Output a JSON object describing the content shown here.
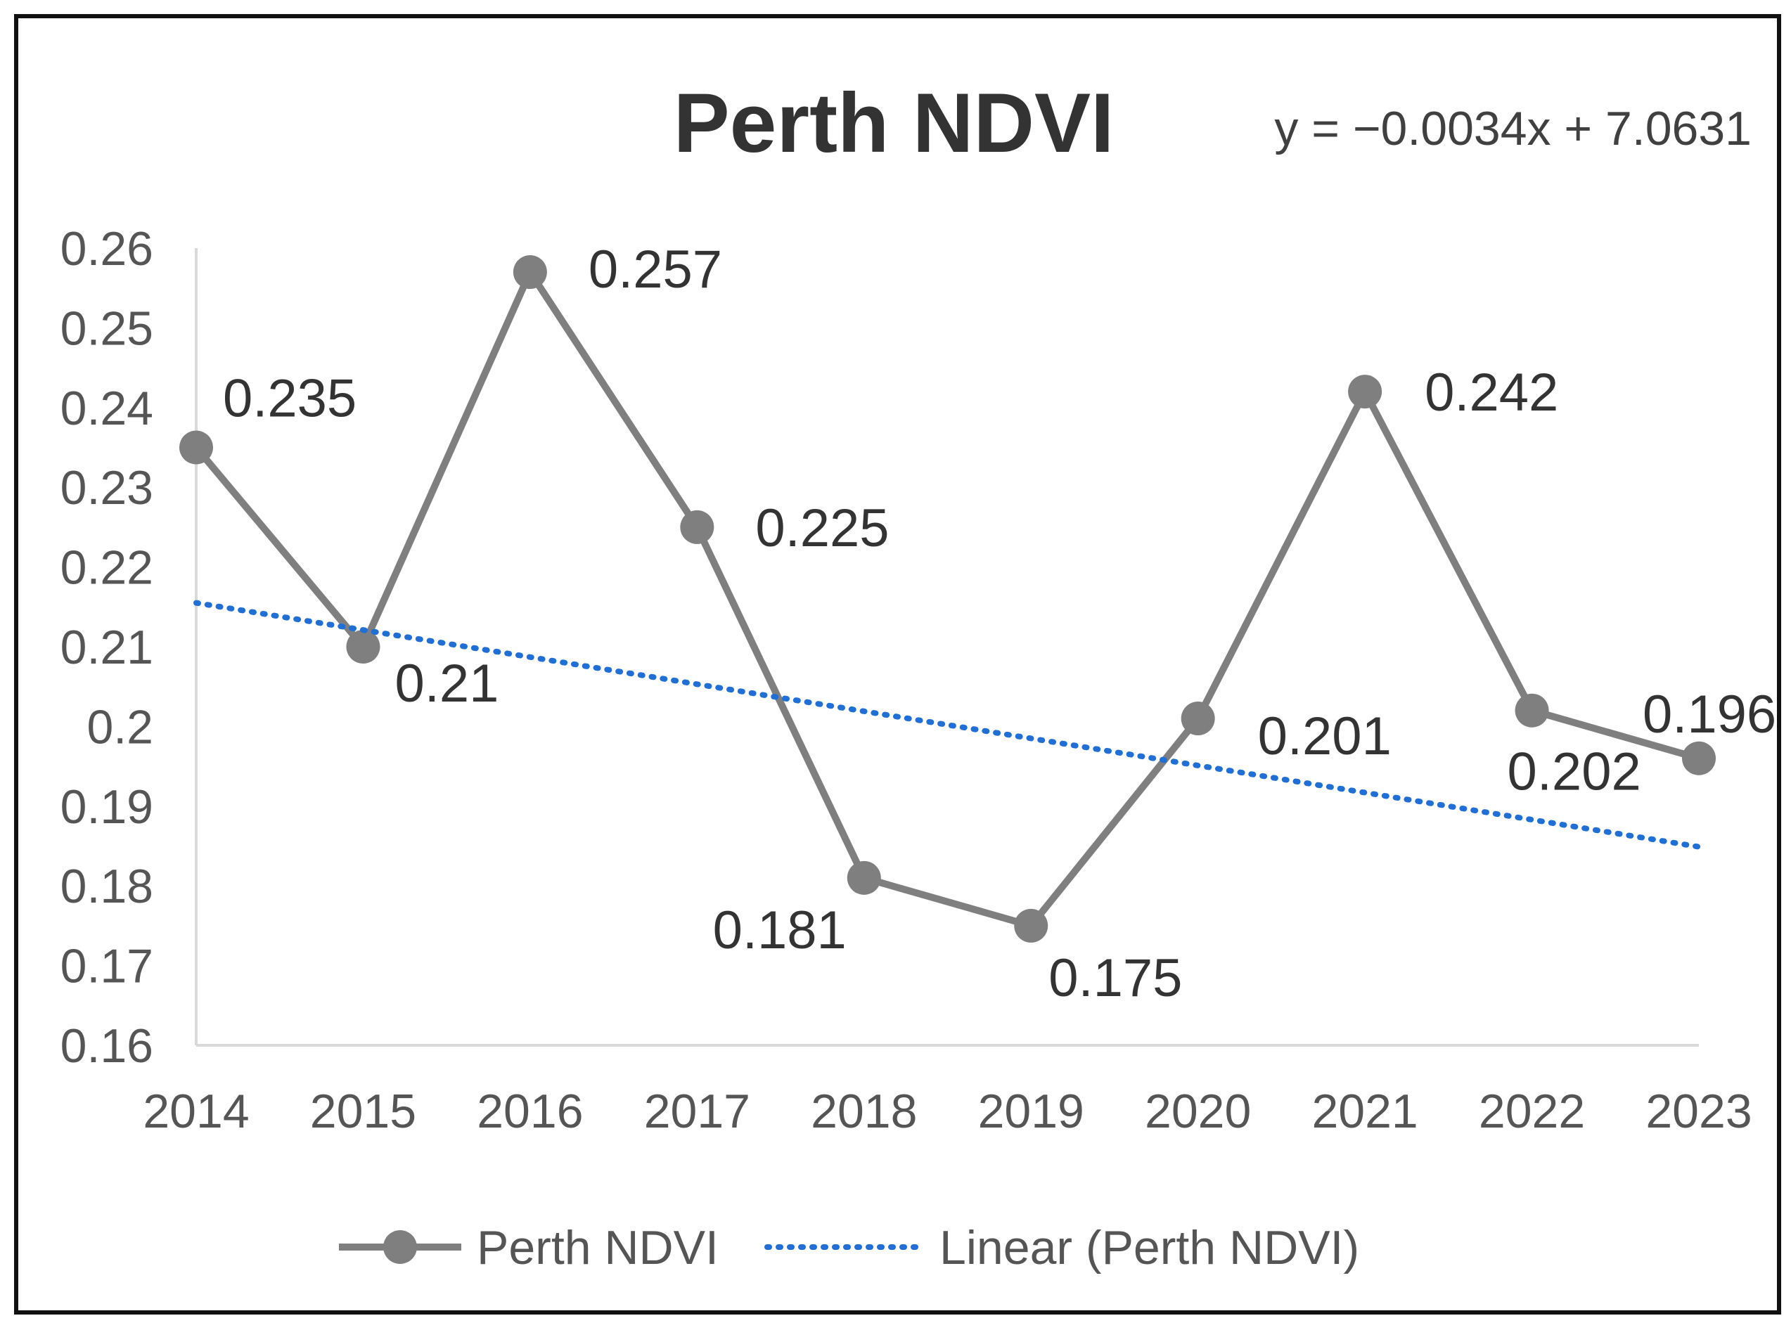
{
  "chart_data": {
    "type": "line",
    "title": "Perth NDVI",
    "equation": "y = −0.0034x + 7.0631",
    "xlabel": "",
    "ylabel": "",
    "categories": [
      "2014",
      "2015",
      "2016",
      "2017",
      "2018",
      "2019",
      "2020",
      "2021",
      "2022",
      "2023"
    ],
    "series": [
      {
        "name": "Perth NDVI",
        "values": [
          0.235,
          0.21,
          0.257,
          0.225,
          0.181,
          0.175,
          0.201,
          0.242,
          0.202,
          0.196
        ],
        "labels": [
          "0.235",
          "0.21",
          "0.257",
          "0.225",
          "0.181",
          "0.175",
          "0.201",
          "0.242",
          "0.202",
          "0.196"
        ],
        "color": "#7f7f7f"
      }
    ],
    "trendline": {
      "name": "Linear (Perth NDVI)",
      "slope": -0.0034,
      "intercept": 7.0631,
      "color": "#1f6fd6"
    },
    "ylim": [
      0.16,
      0.26
    ],
    "yticks": [
      "0.26",
      "0.25",
      "0.24",
      "0.23",
      "0.22",
      "0.21",
      "0.2",
      "0.19",
      "0.18",
      "0.17",
      "0.16"
    ],
    "legend": {
      "position": "bottom",
      "entries": [
        "Perth NDVI",
        "Linear (Perth NDVI)"
      ]
    },
    "grid": false
  }
}
